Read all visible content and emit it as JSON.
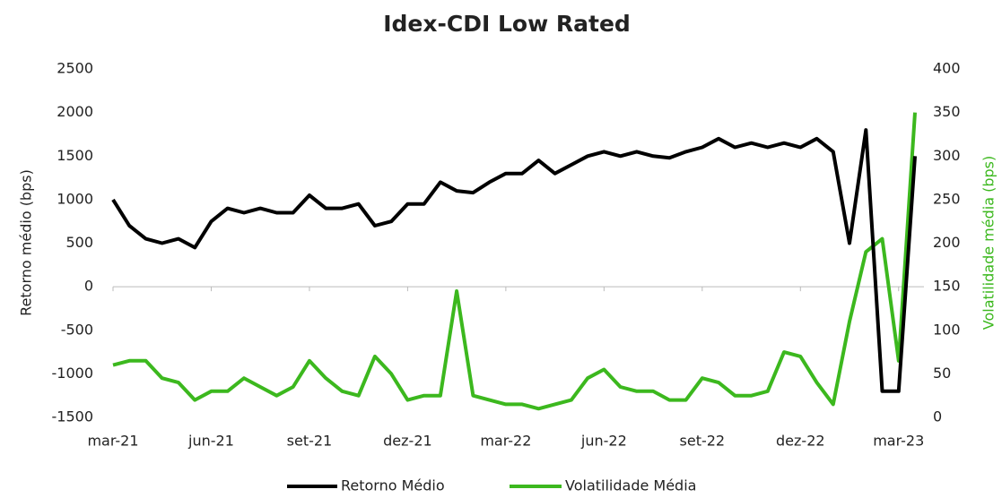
{
  "chart_data": {
    "type": "line",
    "title": "Idex-CDI Low Rated",
    "y_label": "Retorno médio (bps)",
    "y2_label": "Volatilidade média (bps)",
    "categories": [
      "mar-21",
      null,
      null,
      null,
      null,
      null,
      "jun-21",
      null,
      null,
      null,
      null,
      null,
      "set-21",
      null,
      null,
      null,
      null,
      null,
      "dez-21",
      null,
      null,
      null,
      null,
      null,
      "mar-22",
      null,
      null,
      null,
      null,
      null,
      "jun-22",
      null,
      null,
      null,
      null,
      null,
      "set-22",
      null,
      null,
      null,
      null,
      null,
      "dez-22",
      null,
      null,
      null,
      null,
      null,
      "mar-23",
      null
    ],
    "series": [
      {
        "name": "Retorno Médio",
        "color": "#000000",
        "axis": "y",
        "values": [
          1000,
          700,
          550,
          500,
          550,
          450,
          750,
          900,
          850,
          900,
          850,
          850,
          1050,
          900,
          900,
          950,
          700,
          750,
          950,
          950,
          1200,
          1100,
          1080,
          1200,
          1300,
          1300,
          1450,
          1300,
          1400,
          1500,
          1550,
          1500,
          1550,
          1500,
          1480,
          1550,
          1600,
          1700,
          1600,
          1650,
          1600,
          1650,
          1600,
          1700,
          1550,
          500,
          1800,
          -1200,
          -1200,
          1500
        ]
      },
      {
        "name": "Volatilidade Média",
        "color": "#3cb81e",
        "axis": "y2",
        "values": [
          60,
          65,
          65,
          45,
          40,
          20,
          30,
          30,
          45,
          35,
          25,
          35,
          65,
          45,
          30,
          25,
          70,
          50,
          20,
          25,
          25,
          145,
          25,
          20,
          15,
          15,
          10,
          15,
          20,
          45,
          55,
          35,
          30,
          30,
          20,
          20,
          45,
          40,
          25,
          25,
          30,
          75,
          70,
          40,
          15,
          110,
          190,
          205,
          65,
          350
        ]
      }
    ],
    "ylim": [
      -1500,
      2500
    ],
    "yticks": [
      -1500,
      -1000,
      -500,
      0,
      500,
      1000,
      1500,
      2000,
      2500
    ],
    "y2lim": [
      0,
      400
    ],
    "y2ticks": [
      0,
      50,
      100,
      150,
      200,
      250,
      300,
      350,
      400
    ],
    "legend": "bottom"
  }
}
